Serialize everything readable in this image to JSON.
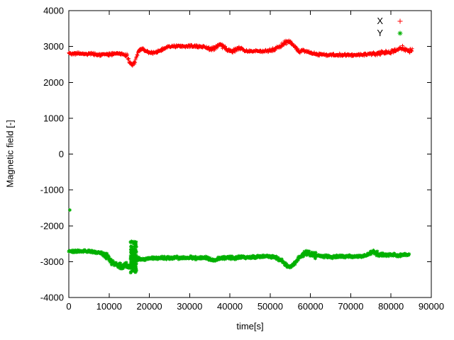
{
  "figure": {
    "background": "#ffffff",
    "border_color": "#000000",
    "legend_position": "top-right-inside"
  },
  "chart_data": {
    "type": "scatter",
    "title": "",
    "xlabel": "time[s]",
    "ylabel": "Magnetic field [-]",
    "xlim": [
      0,
      90000
    ],
    "ylim": [
      -4000,
      4000
    ],
    "grid": false,
    "xticks": [
      0,
      10000,
      20000,
      30000,
      40000,
      50000,
      60000,
      70000,
      80000,
      90000
    ],
    "yticks": [
      -4000,
      -3000,
      -2000,
      -1000,
      0,
      1000,
      2000,
      3000,
      4000
    ],
    "sample_step": 85,
    "marker_radius": 2.5,
    "series": [
      {
        "name": "X",
        "color": "#ff0000",
        "marker": "plus",
        "noise": 55,
        "noisy_regions": [
          [
            13800,
            17500,
            40
          ],
          [
            34000,
            43000,
            25
          ],
          [
            50500,
            57500,
            20
          ],
          [
            75000,
            85500,
            35
          ]
        ],
        "control_points": [
          [
            0,
            2810
          ],
          [
            3000,
            2800
          ],
          [
            6000,
            2790
          ],
          [
            8000,
            2765
          ],
          [
            10000,
            2780
          ],
          [
            12000,
            2810
          ],
          [
            13500,
            2790
          ],
          [
            14500,
            2700
          ],
          [
            15300,
            2520
          ],
          [
            15800,
            2470
          ],
          [
            16300,
            2550
          ],
          [
            16800,
            2720
          ],
          [
            17500,
            2880
          ],
          [
            18200,
            2940
          ],
          [
            19000,
            2890
          ],
          [
            20000,
            2820
          ],
          [
            21000,
            2830
          ],
          [
            22000,
            2850
          ],
          [
            23000,
            2900
          ],
          [
            24000,
            2960
          ],
          [
            25000,
            3000
          ],
          [
            27000,
            3005
          ],
          [
            30000,
            3005
          ],
          [
            33000,
            3000
          ],
          [
            34000,
            2990
          ],
          [
            35000,
            2910
          ],
          [
            36000,
            2950
          ],
          [
            37000,
            3040
          ],
          [
            37800,
            3050
          ],
          [
            38500,
            2980
          ],
          [
            39500,
            2900
          ],
          [
            40500,
            2870
          ],
          [
            41500,
            2930
          ],
          [
            42500,
            2950
          ],
          [
            43500,
            2900
          ],
          [
            44500,
            2860
          ],
          [
            46000,
            2880
          ],
          [
            48000,
            2860
          ],
          [
            50000,
            2890
          ],
          [
            51500,
            2950
          ],
          [
            52500,
            3010
          ],
          [
            53500,
            3090
          ],
          [
            54300,
            3150
          ],
          [
            55000,
            3120
          ],
          [
            55800,
            3030
          ],
          [
            56500,
            2930
          ],
          [
            57200,
            2870
          ],
          [
            58000,
            2900
          ],
          [
            59000,
            2860
          ],
          [
            60000,
            2810
          ],
          [
            62000,
            2780
          ],
          [
            65000,
            2765
          ],
          [
            68000,
            2760
          ],
          [
            71000,
            2765
          ],
          [
            74000,
            2780
          ],
          [
            76000,
            2800
          ],
          [
            78000,
            2820
          ],
          [
            80000,
            2840
          ],
          [
            81000,
            2880
          ],
          [
            82000,
            2930
          ],
          [
            82800,
            2960
          ],
          [
            83500,
            2900
          ],
          [
            84300,
            2890
          ],
          [
            85300,
            2910
          ]
        ],
        "clusters": [],
        "outliers": []
      },
      {
        "name": "Y",
        "color": "#00b000",
        "marker": "asterisk",
        "noise": 60,
        "noisy_regions": [
          [
            8800,
            16000,
            50
          ],
          [
            16000,
            17500,
            35
          ],
          [
            57500,
            61500,
            50
          ],
          [
            74800,
            77200,
            40
          ]
        ],
        "control_points": [
          [
            0,
            -2710
          ],
          [
            2000,
            -2720
          ],
          [
            4000,
            -2700
          ],
          [
            6000,
            -2730
          ],
          [
            8000,
            -2760
          ],
          [
            9500,
            -2850
          ],
          [
            10500,
            -2990
          ],
          [
            11500,
            -3060
          ],
          [
            12500,
            -3090
          ],
          [
            13200,
            -3150
          ],
          [
            14000,
            -3100
          ],
          [
            14800,
            -3160
          ],
          [
            15500,
            -3120
          ],
          [
            16200,
            -2950
          ],
          [
            17000,
            -2920
          ],
          [
            18000,
            -2930
          ],
          [
            19000,
            -2950
          ],
          [
            20000,
            -2900
          ],
          [
            22000,
            -2890
          ],
          [
            24000,
            -2900
          ],
          [
            26000,
            -2890
          ],
          [
            28000,
            -2900
          ],
          [
            30000,
            -2890
          ],
          [
            32000,
            -2900
          ],
          [
            34000,
            -2890
          ],
          [
            35500,
            -2960
          ],
          [
            36500,
            -2950
          ],
          [
            37500,
            -2900
          ],
          [
            39000,
            -2890
          ],
          [
            41000,
            -2900
          ],
          [
            43000,
            -2870
          ],
          [
            45000,
            -2880
          ],
          [
            47000,
            -2860
          ],
          [
            49000,
            -2850
          ],
          [
            51000,
            -2880
          ],
          [
            52500,
            -2950
          ],
          [
            53500,
            -3040
          ],
          [
            54300,
            -3120
          ],
          [
            55000,
            -3150
          ],
          [
            55800,
            -3080
          ],
          [
            56500,
            -2980
          ],
          [
            57200,
            -2880
          ],
          [
            58500,
            -2790
          ],
          [
            59500,
            -2760
          ],
          [
            60500,
            -2810
          ],
          [
            63000,
            -2850
          ],
          [
            66000,
            -2860
          ],
          [
            69000,
            -2860
          ],
          [
            72000,
            -2850
          ],
          [
            74000,
            -2820
          ],
          [
            75500,
            -2720
          ],
          [
            76500,
            -2780
          ],
          [
            78000,
            -2810
          ],
          [
            80000,
            -2800
          ],
          [
            82000,
            -2830
          ],
          [
            83500,
            -2800
          ],
          [
            84500,
            -2810
          ]
        ],
        "clusters": [
          {
            "x0": 15300,
            "x1": 16800,
            "count": 110,
            "ymin": -3320,
            "ymax": -2430
          }
        ],
        "outliers": [
          [
            250,
            -1560
          ]
        ]
      }
    ]
  }
}
